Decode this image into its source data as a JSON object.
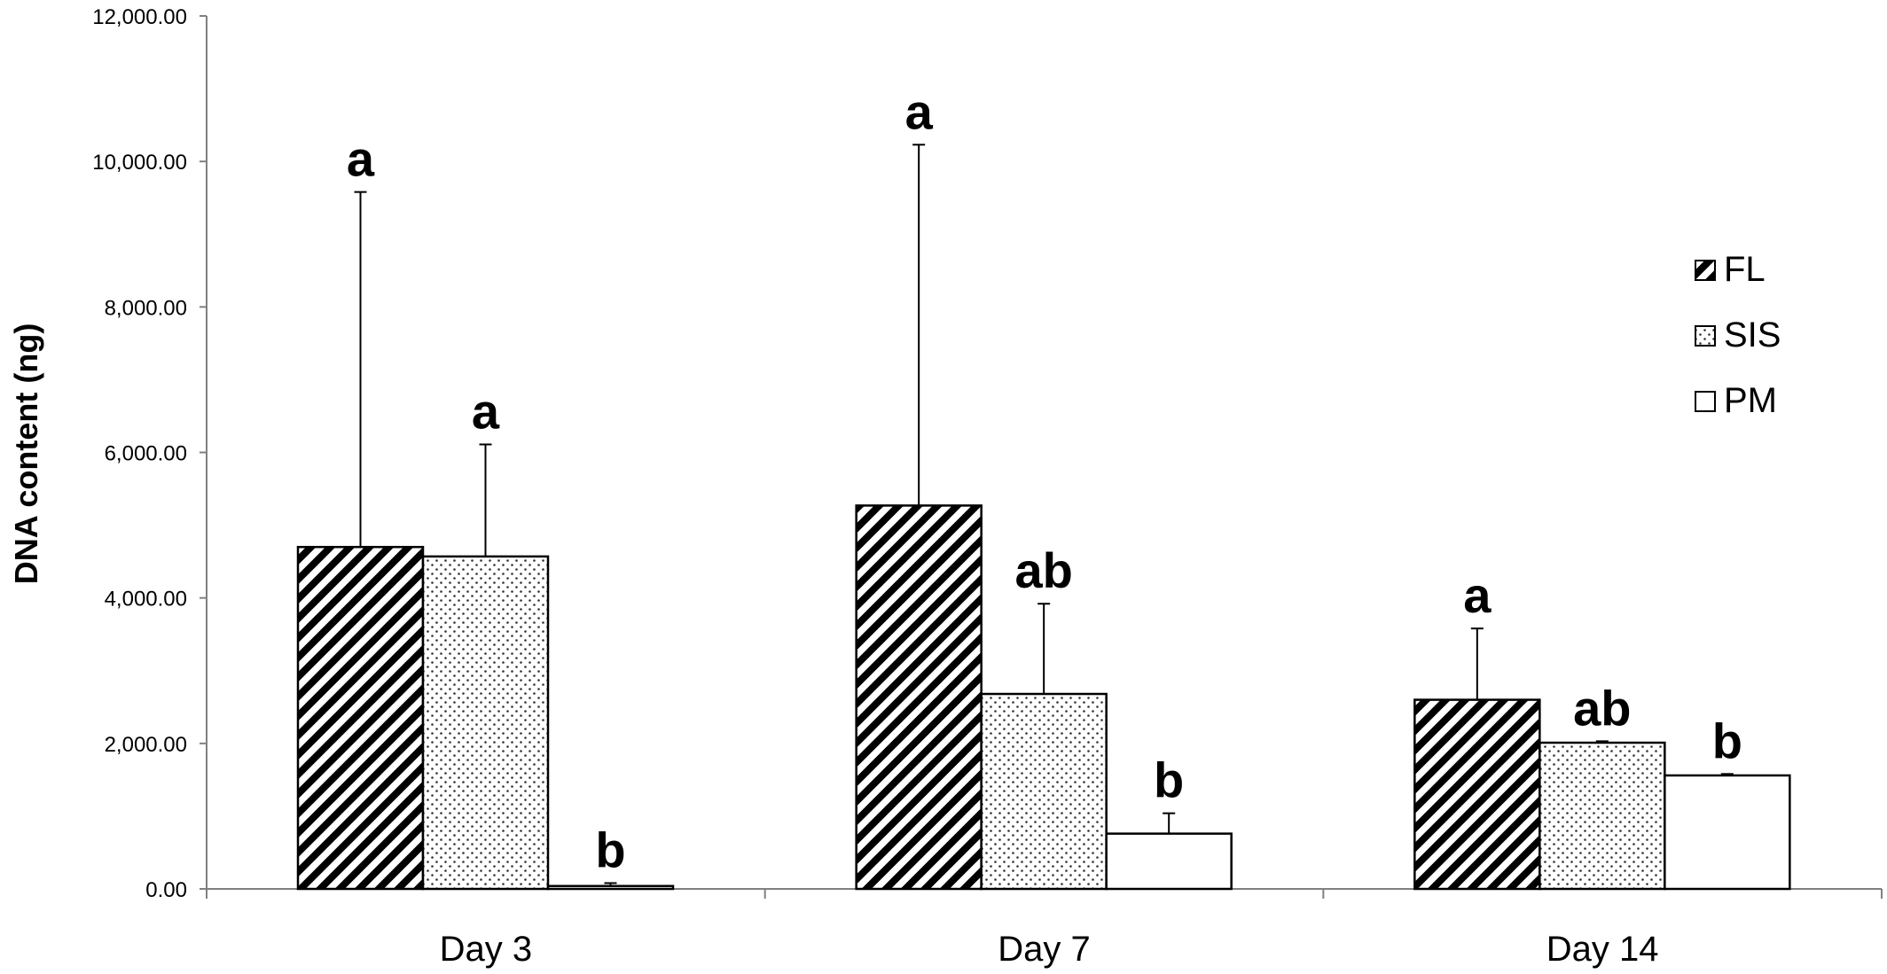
{
  "chart_data": {
    "type": "bar",
    "title": "",
    "xlabel": "",
    "ylabel": "DNA content (ng)",
    "ylim": [
      0,
      12000
    ],
    "yticks": [
      "0.00",
      "2,000.00",
      "4,000.00",
      "6,000.00",
      "8,000.00",
      "10,000.00",
      "12,000.00"
    ],
    "categories": [
      "Day 3",
      "Day 7",
      "Day 14"
    ],
    "series": [
      {
        "name": "FL",
        "pattern": "diagonal-stripes",
        "values": [
          4700,
          5270,
          2600
        ],
        "error_plus": [
          4880,
          4960,
          980
        ],
        "significance": [
          "a",
          "a",
          "a"
        ]
      },
      {
        "name": "SIS",
        "pattern": "dots",
        "values": [
          4570,
          2680,
          2010
        ],
        "error_plus": [
          1540,
          1240,
          20
        ],
        "significance": [
          "a",
          "ab",
          "ab"
        ]
      },
      {
        "name": "PM",
        "pattern": "blank",
        "values": [
          40,
          760,
          1560
        ],
        "error_plus": [
          40,
          280,
          20
        ],
        "significance": [
          "b",
          "b",
          "b"
        ]
      }
    ],
    "grid": false,
    "legend_position": "right"
  },
  "colors": {
    "axis": "#808080",
    "bar_outline": "#000000",
    "bar_fill": "#ffffff",
    "pattern_ink": "#000000"
  }
}
